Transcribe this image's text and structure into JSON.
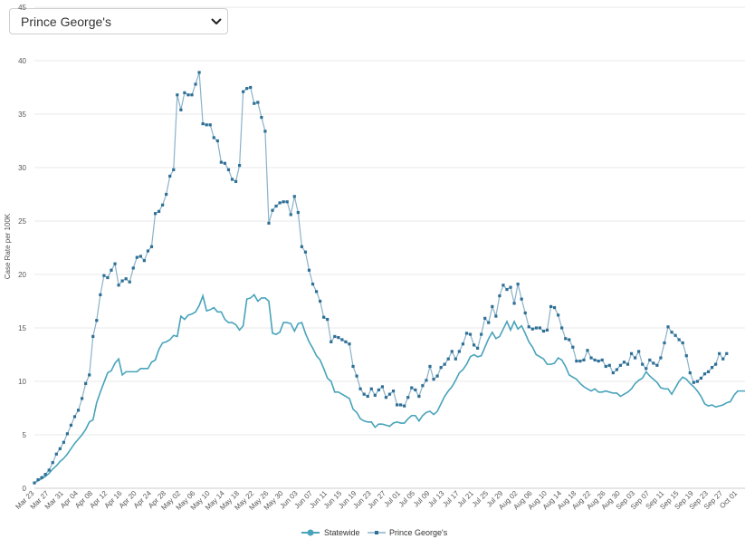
{
  "selector": {
    "selected_value": "Prince George's"
  },
  "colors": {
    "statewide": "#48a3bb",
    "county": "#2e6f96",
    "county_line": "#8ab2c8",
    "grid": "#e9e9e9"
  },
  "chart_data": {
    "type": "line",
    "title": "",
    "xlabel": "",
    "ylabel": "Case Rate per 100K",
    "ylim": [
      0,
      45
    ],
    "yticks": [
      0,
      5,
      10,
      15,
      20,
      25,
      30,
      35,
      40,
      45
    ],
    "x_start": "Mar 23",
    "x_end": "Oct 04",
    "x_tick_labels": [
      "Mar 23",
      "Mar 27",
      "Mar 31",
      "Apr 04",
      "Apr 08",
      "Apr 12",
      "Apr 16",
      "Apr 20",
      "Apr 24",
      "Apr 28",
      "May 02",
      "May 06",
      "May 10",
      "May 14",
      "May 18",
      "May 22",
      "May 26",
      "May 30",
      "Jun 03",
      "Jun 07",
      "Jun 11",
      "Jun 15",
      "Jun 19",
      "Jun 23",
      "Jun 27",
      "Jul 01",
      "Jul 05",
      "Jul 09",
      "Jul 13",
      "Jul 17",
      "Jul 21",
      "Jul 25",
      "Jul 29",
      "Aug 02",
      "Aug 06",
      "Aug 10",
      "Aug 14",
      "Aug 18",
      "Aug 22",
      "Aug 26",
      "Aug 30",
      "Sep 03",
      "Sep 07",
      "Sep 11",
      "Sep 15",
      "Sep 19",
      "Sep 23",
      "Sep 27",
      "Oct 01"
    ],
    "legend_position": "bottom-center",
    "grid": true,
    "series": [
      {
        "name": "Statewide",
        "values": [
          0.5,
          0.7,
          0.9,
          1.1,
          1.4,
          1.8,
          2.1,
          2.5,
          2.8,
          3.2,
          3.7,
          4.2,
          4.6,
          5.0,
          5.5,
          6.2,
          6.4,
          8.0,
          9.0,
          9.9,
          10.8,
          11.0,
          11.7,
          12.1,
          10.6,
          10.9,
          10.9,
          10.9,
          10.9,
          11.2,
          11.2,
          11.2,
          11.8,
          12.0,
          13.0,
          13.6,
          13.7,
          13.9,
          14.3,
          14.2,
          16.1,
          15.8,
          16.2,
          16.3,
          16.5,
          17.1,
          18.0,
          16.6,
          16.7,
          16.9,
          16.5,
          16.5,
          15.8,
          15.5,
          15.5,
          15.3,
          14.8,
          15.2,
          17.7,
          17.8,
          18.1,
          17.5,
          17.8,
          17.8,
          17.5,
          14.5,
          14.4,
          14.6,
          15.5,
          15.5,
          15.4,
          14.7,
          15.4,
          15.5,
          14.5,
          13.7,
          13.1,
          12.4,
          12.0,
          11.2,
          10.3,
          10.0,
          9.0,
          9.0,
          8.8,
          8.6,
          8.4,
          7.4,
          7.1,
          6.5,
          6.3,
          6.2,
          6.2,
          5.7,
          6.0,
          6.0,
          5.9,
          5.8,
          6.1,
          6.2,
          6.1,
          6.1,
          6.5,
          6.8,
          6.8,
          6.3,
          6.8,
          7.1,
          7.2,
          6.9,
          7.2,
          7.9,
          8.6,
          9.1,
          9.5,
          10.1,
          10.8,
          11.1,
          11.6,
          12.3,
          12.5,
          12.3,
          12.4,
          13.2,
          14.0,
          14.6,
          14.0,
          14.2,
          14.9,
          15.6,
          14.8,
          15.6,
          14.9,
          15.2,
          14.5,
          13.7,
          13.2,
          12.5,
          12.3,
          12.1,
          11.6,
          11.6,
          11.7,
          12.2,
          12.0,
          11.4,
          10.6,
          10.4,
          10.2,
          9.8,
          9.5,
          9.3,
          9.1,
          9.3,
          9.0,
          9.0,
          9.1,
          9.0,
          8.9,
          8.9,
          8.6,
          8.8,
          9.0,
          9.3,
          9.8,
          10.1,
          10.3,
          10.9,
          10.5,
          10.2,
          9.9,
          9.4,
          9.3,
          9.3,
          8.8,
          9.4,
          10.0,
          10.4,
          10.2,
          9.8,
          9.5,
          9.1,
          8.6,
          7.9,
          7.7,
          7.8,
          7.6,
          7.7,
          7.8,
          8.0,
          8.1,
          8.7,
          9.1,
          9.1,
          9.1
        ]
      },
      {
        "name": "Prince George's",
        "values": [
          0.5,
          0.8,
          1.0,
          1.3,
          1.7,
          2.4,
          3.2,
          3.7,
          4.3,
          5.1,
          5.9,
          6.7,
          7.3,
          8.4,
          9.8,
          10.6,
          14.2,
          15.7,
          18.1,
          19.9,
          19.7,
          20.4,
          21.0,
          19.0,
          19.4,
          19.6,
          19.3,
          20.6,
          21.6,
          21.7,
          21.3,
          22.2,
          22.6,
          25.7,
          25.9,
          26.5,
          27.5,
          29.2,
          29.8,
          36.8,
          35.4,
          37.0,
          36.8,
          36.8,
          37.8,
          38.9,
          34.1,
          34.0,
          34.0,
          32.8,
          32.5,
          30.5,
          30.4,
          29.8,
          28.9,
          28.7,
          30.2,
          37.1,
          37.4,
          37.5,
          36.0,
          36.1,
          34.7,
          33.4,
          24.8,
          26.0,
          26.4,
          26.7,
          26.8,
          26.8,
          25.6,
          27.3,
          25.8,
          22.6,
          22.1,
          20.4,
          19.1,
          18.4,
          17.5,
          16.0,
          15.8,
          13.7,
          14.2,
          14.1,
          13.9,
          13.7,
          13.5,
          11.4,
          10.5,
          9.3,
          8.8,
          8.6,
          9.3,
          8.7,
          9.2,
          9.5,
          8.5,
          8.8,
          9.1,
          7.8,
          7.8,
          7.7,
          8.5,
          9.4,
          9.2,
          8.6,
          9.6,
          10.1,
          11.4,
          10.2,
          10.5,
          11.3,
          11.6,
          12.1,
          12.8,
          12.1,
          12.8,
          13.5,
          14.5,
          14.4,
          13.4,
          13.1,
          14.4,
          15.9,
          15.5,
          17.0,
          16.1,
          18.0,
          19.0,
          18.6,
          18.8,
          17.3,
          19.1,
          17.7,
          16.4,
          15.1,
          14.9,
          15.0,
          15.0,
          14.7,
          14.8,
          17.0,
          16.9,
          16.2,
          15.0,
          14.0,
          13.9,
          13.2,
          11.9,
          11.9,
          12.0,
          12.9,
          12.2,
          12.0,
          11.9,
          12.0,
          11.4,
          11.5,
          10.8,
          11.1,
          11.5,
          11.8,
          11.6,
          12.6,
          12.2,
          12.8,
          11.6,
          11.2,
          12.0,
          11.7,
          11.5,
          12.2,
          13.6,
          15.1,
          14.6,
          14.3,
          13.9,
          13.6,
          12.4,
          10.8,
          9.9,
          10.0,
          10.3,
          10.7,
          10.9,
          11.3,
          11.6,
          12.6,
          12.1,
          12.6
        ]
      }
    ]
  }
}
